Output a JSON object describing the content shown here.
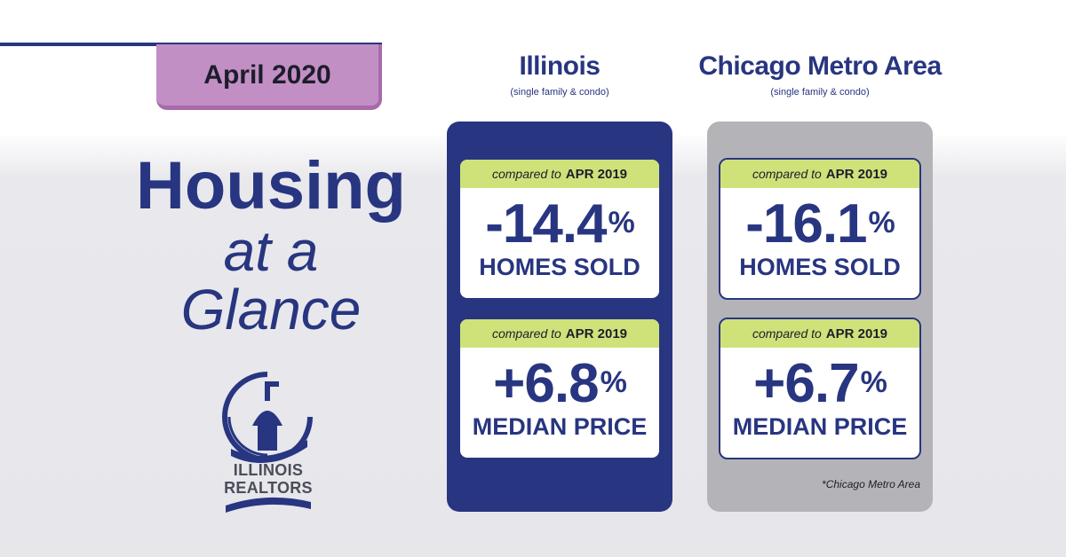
{
  "month": "April 2020",
  "headline": {
    "line1": "Housing",
    "line2": "at a",
    "line3": "Glance"
  },
  "logo": {
    "line1": "ILLINOIS",
    "line2": "REALTORS",
    "icon": "capitol-dome-icon"
  },
  "columns": [
    {
      "title": "Illinois",
      "subtitle": "(single family & condo)",
      "cards": [
        {
          "compare_prefix": "compared to",
          "compare_period": "APR 2019",
          "value": "-14.4",
          "unit": "%",
          "metric": "HOMES SOLD"
        },
        {
          "compare_prefix": "compared to",
          "compare_period": "APR 2019",
          "value": "+6.8",
          "unit": "%",
          "metric": "MEDIAN PRICE"
        }
      ]
    },
    {
      "title": "Chicago Metro Area",
      "subtitle": "(single family & condo)",
      "cards": [
        {
          "compare_prefix": "compared to",
          "compare_period": "APR 2019",
          "value": "-16.1",
          "unit": "%",
          "metric": "HOMES SOLD"
        },
        {
          "compare_prefix": "compared to",
          "compare_period": "APR 2019",
          "value": "+6.7",
          "unit": "%",
          "metric": "MEDIAN PRICE"
        }
      ],
      "footnote": "*Chicago Metro Area"
    }
  ],
  "colors": {
    "navy": "#283580",
    "purple": "#c28fc5",
    "lime": "#cfe27a",
    "gray_panel": "#b4b4b8"
  }
}
